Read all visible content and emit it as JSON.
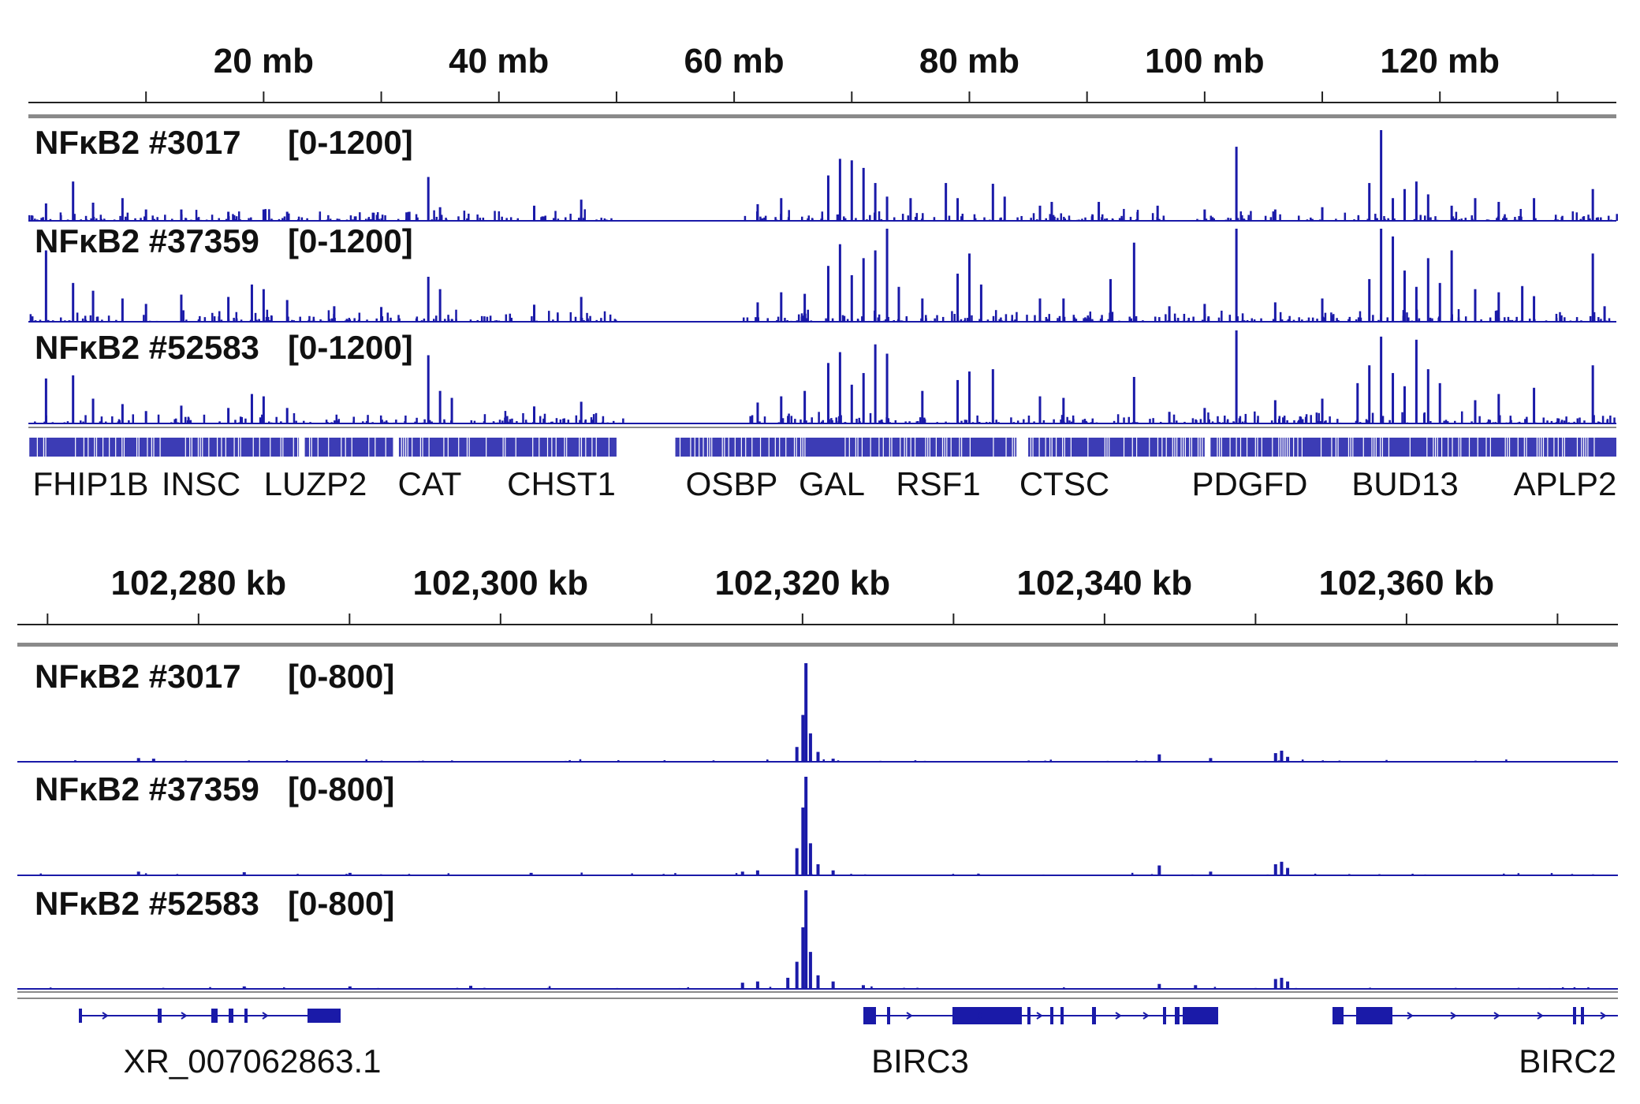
{
  "colors": {
    "signal": "#1a1aa8",
    "axis": "#222222",
    "ruler_bar": "#8a8a8a",
    "gene": "#1a1aa8"
  },
  "chart_data": [
    {
      "type": "area",
      "panel": "genome-wide",
      "axis": {
        "unit": "mb",
        "range": [
          0,
          135
        ],
        "ticks": [
          {
            "value": 20,
            "label": "20 mb"
          },
          {
            "value": 40,
            "label": "40 mb"
          },
          {
            "value": 60,
            "label": "60 mb"
          },
          {
            "value": 80,
            "label": "80 mb"
          },
          {
            "value": 100,
            "label": "100 mb"
          },
          {
            "value": 120,
            "label": "120 mb"
          }
        ],
        "minor_ticks": [
          10,
          30,
          50,
          70,
          90,
          110,
          130
        ]
      },
      "tracks": [
        {
          "name": "NFκB2 #3017",
          "range": "[0-1200]",
          "ymax": 1200,
          "peaks": [
            [
              1.5,
              230
            ],
            [
              3.8,
              520
            ],
            [
              5.5,
              240
            ],
            [
              8,
              300
            ],
            [
              10,
              150
            ],
            [
              13,
              150
            ],
            [
              17,
              120
            ],
            [
              20,
              150
            ],
            [
              22,
              120
            ],
            [
              34,
              580
            ],
            [
              35,
              180
            ],
            [
              43,
              200
            ],
            [
              47,
              280
            ],
            [
              62,
              220
            ],
            [
              64,
              300
            ],
            [
              68,
              600
            ],
            [
              69,
              820
            ],
            [
              70,
              800
            ],
            [
              71,
              700
            ],
            [
              72,
              500
            ],
            [
              73,
              320
            ],
            [
              75,
              300
            ],
            [
              78,
              500
            ],
            [
              79,
              300
            ],
            [
              82,
              490
            ],
            [
              83,
              320
            ],
            [
              86,
              200
            ],
            [
              87,
              250
            ],
            [
              91,
              250
            ],
            [
              96,
              200
            ],
            [
              100,
              150
            ],
            [
              102.7,
              980
            ],
            [
              106,
              150
            ],
            [
              110,
              180
            ],
            [
              114,
              500
            ],
            [
              115,
              1220
            ],
            [
              116,
              300
            ],
            [
              117,
              420
            ],
            [
              118,
              520
            ],
            [
              119,
              350
            ],
            [
              121,
              200
            ],
            [
              123,
              300
            ],
            [
              125,
              250
            ],
            [
              128,
              300
            ],
            [
              133,
              420
            ]
          ]
        },
        {
          "name": "NFκB2 #37359",
          "range": "[0-1200]",
          "ymax": 1200,
          "peaks": [
            [
              1.5,
              920
            ],
            [
              3.8,
              500
            ],
            [
              5.5,
              400
            ],
            [
              8,
              300
            ],
            [
              10,
              230
            ],
            [
              13,
              350
            ],
            [
              17,
              320
            ],
            [
              19,
              480
            ],
            [
              20,
              420
            ],
            [
              22,
              280
            ],
            [
              26,
              200
            ],
            [
              30,
              190
            ],
            [
              34,
              580
            ],
            [
              35,
              420
            ],
            [
              43,
              220
            ],
            [
              47,
              320
            ],
            [
              62,
              250
            ],
            [
              64,
              380
            ],
            [
              66,
              360
            ],
            [
              68,
              720
            ],
            [
              69,
              1000
            ],
            [
              70,
              600
            ],
            [
              71,
              820
            ],
            [
              72,
              920
            ],
            [
              73,
              1220
            ],
            [
              74,
              450
            ],
            [
              76,
              300
            ],
            [
              79,
              620
            ],
            [
              80,
              880
            ],
            [
              81,
              480
            ],
            [
              86,
              300
            ],
            [
              88,
              300
            ],
            [
              92,
              550
            ],
            [
              94,
              1020
            ],
            [
              97,
              200
            ],
            [
              100,
              230
            ],
            [
              102.7,
              1200
            ],
            [
              106,
              250
            ],
            [
              110,
              300
            ],
            [
              114,
              550
            ],
            [
              115,
              1220
            ],
            [
              116,
              1100
            ],
            [
              117,
              660
            ],
            [
              118,
              450
            ],
            [
              119,
              820
            ],
            [
              120,
              500
            ],
            [
              121,
              920
            ],
            [
              123,
              420
            ],
            [
              125,
              380
            ],
            [
              127,
              460
            ],
            [
              128,
              330
            ],
            [
              133,
              880
            ],
            [
              134,
              200
            ]
          ]
        },
        {
          "name": "NFκB2 #52583",
          "range": "[0-1200]",
          "ymax": 1200,
          "peaks": [
            [
              1.5,
              580
            ],
            [
              3.8,
              620
            ],
            [
              5.5,
              320
            ],
            [
              8,
              250
            ],
            [
              10,
              160
            ],
            [
              13,
              230
            ],
            [
              17,
              200
            ],
            [
              19,
              380
            ],
            [
              20,
              350
            ],
            [
              22,
              200
            ],
            [
              34,
              880
            ],
            [
              35,
              420
            ],
            [
              36,
              330
            ],
            [
              43,
              220
            ],
            [
              47,
              280
            ],
            [
              62,
              270
            ],
            [
              64,
              350
            ],
            [
              66,
              420
            ],
            [
              68,
              780
            ],
            [
              69,
              920
            ],
            [
              70,
              500
            ],
            [
              71,
              650
            ],
            [
              72,
              1020
            ],
            [
              73,
              900
            ],
            [
              76,
              420
            ],
            [
              79,
              560
            ],
            [
              80,
              670
            ],
            [
              82,
              700
            ],
            [
              86,
              350
            ],
            [
              88,
              330
            ],
            [
              94,
              600
            ],
            [
              97,
              150
            ],
            [
              100,
              200
            ],
            [
              102.7,
              1220
            ],
            [
              106,
              300
            ],
            [
              110,
              320
            ],
            [
              113,
              520
            ],
            [
              114,
              750
            ],
            [
              115,
              1120
            ],
            [
              116,
              650
            ],
            [
              117,
              480
            ],
            [
              118,
              1080
            ],
            [
              119,
              700
            ],
            [
              120,
              520
            ],
            [
              123,
              300
            ],
            [
              125,
              380
            ],
            [
              128,
              460
            ],
            [
              133,
              750
            ]
          ]
        }
      ],
      "gene_labels": [
        "FHIP1B",
        "INSC",
        "LUZP2",
        "CAT",
        "CHST1",
        "OSBP",
        "GAL",
        "RSF1",
        "CTSC",
        "PDGFD",
        "BUD13",
        "APLP2"
      ]
    },
    {
      "type": "area",
      "panel": "zoomed-locus",
      "axis": {
        "unit": "kb",
        "range": [
          102268,
          102374
        ],
        "ticks": [
          {
            "value": 102280,
            "label": "102,280 kb"
          },
          {
            "value": 102300,
            "label": "102,300 kb"
          },
          {
            "value": 102320,
            "label": "102,320 kb"
          },
          {
            "value": 102340,
            "label": "102,340 kb"
          },
          {
            "value": 102360,
            "label": "102,360 kb"
          }
        ],
        "minor_ticks": [
          102270,
          102290,
          102310,
          102330,
          102350,
          102370
        ]
      },
      "tracks": [
        {
          "name": "NFκB2 #3017",
          "range": "[0-800]",
          "ymax": 800,
          "peaks": [
            [
              102276,
              30
            ],
            [
              102277,
              25
            ],
            [
              102319.6,
              120
            ],
            [
              102320,
              380
            ],
            [
              102320.2,
              800
            ],
            [
              102320.5,
              230
            ],
            [
              102321,
              80
            ],
            [
              102322,
              25
            ],
            [
              102343.6,
              60
            ],
            [
              102347,
              30
            ],
            [
              102351.3,
              70
            ],
            [
              102351.7,
              90
            ],
            [
              102352.1,
              40
            ]
          ]
        },
        {
          "name": "NFκB2 #37359",
          "range": "[0-800]",
          "ymax": 800,
          "peaks": [
            [
              102276,
              30
            ],
            [
              102283,
              25
            ],
            [
              102290,
              20
            ],
            [
              102302,
              20
            ],
            [
              102316,
              30
            ],
            [
              102317,
              40
            ],
            [
              102319.6,
              220
            ],
            [
              102320,
              550
            ],
            [
              102320.2,
              800
            ],
            [
              102320.5,
              260
            ],
            [
              102321,
              90
            ],
            [
              102322,
              40
            ],
            [
              102343.6,
              80
            ],
            [
              102347,
              30
            ],
            [
              102351.3,
              90
            ],
            [
              102351.7,
              110
            ],
            [
              102352.1,
              60
            ]
          ]
        },
        {
          "name": "NFκB2 #52583",
          "range": "[0-800]",
          "ymax": 800,
          "peaks": [
            [
              102283,
              20
            ],
            [
              102290,
              20
            ],
            [
              102298,
              25
            ],
            [
              102316,
              50
            ],
            [
              102317,
              60
            ],
            [
              102319,
              90
            ],
            [
              102319.6,
              220
            ],
            [
              102320,
              500
            ],
            [
              102320.2,
              800
            ],
            [
              102320.5,
              300
            ],
            [
              102321,
              110
            ],
            [
              102322,
              60
            ],
            [
              102324,
              30
            ],
            [
              102343.6,
              40
            ],
            [
              102346,
              30
            ],
            [
              102351.3,
              80
            ],
            [
              102351.7,
              90
            ],
            [
              102352.1,
              60
            ]
          ]
        }
      ],
      "gene_labels": [
        "XR_007062863.1",
        "BIRC3",
        "BIRC2"
      ]
    }
  ]
}
